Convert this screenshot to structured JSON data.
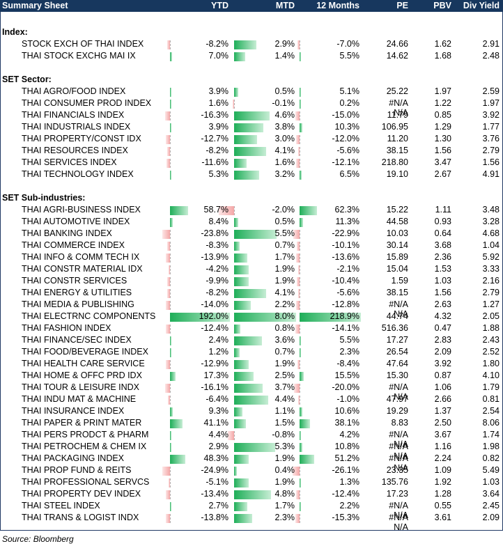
{
  "header": {
    "title": "Summary Sheet",
    "columns": [
      "YTD",
      "MTD",
      "12 Months",
      "PE",
      "PBV",
      "Div Yield"
    ]
  },
  "sections": [
    {
      "label": "Index:",
      "rows": [
        {
          "name": "STOCK EXCH OF THAI INDEX",
          "ytd": "-8.2%",
          "mtd": "2.9%",
          "m12": "-7.0%",
          "pe": "24.66",
          "pbv": "1.62",
          "dy": "2.91",
          "ytd_v": -8.2,
          "mtd_v": 2.9,
          "m12_v": -7.0
        },
        {
          "name": "THAI STOCK EXCHG MAI IX",
          "ytd": "7.0%",
          "mtd": "1.4%",
          "m12": "5.5%",
          "pe": "14.62",
          "pbv": "1.68",
          "dy": "2.48",
          "ytd_v": 7.0,
          "mtd_v": 1.4,
          "m12_v": 5.5
        }
      ]
    },
    {
      "label": "SET Sector:",
      "rows": [
        {
          "name": "THAI AGRO/FOOD INDEX",
          "ytd": "3.9%",
          "mtd": "0.5%",
          "m12": "5.1%",
          "pe": "25.22",
          "pbv": "1.97",
          "dy": "2.59",
          "ytd_v": 3.9,
          "mtd_v": 0.5,
          "m12_v": 5.1
        },
        {
          "name": "THAI CONSUMER PROD INDEX",
          "ytd": "1.6%",
          "mtd": "-0.1%",
          "m12": "0.2%",
          "pe": "#N/A N/A",
          "pbv": "1.22",
          "dy": "1.97",
          "ytd_v": 1.6,
          "mtd_v": -0.1,
          "m12_v": 0.2
        },
        {
          "name": "THAI FINANCIALS INDEX",
          "ytd": "-16.3%",
          "mtd": "4.6%",
          "m12": "-15.0%",
          "pe": "11.79",
          "pbv": "0.85",
          "dy": "3.92",
          "ytd_v": -16.3,
          "mtd_v": 4.6,
          "m12_v": -15.0
        },
        {
          "name": "THAI INDUSTRIALS INDEX",
          "ytd": "3.9%",
          "mtd": "3.8%",
          "m12": "10.3%",
          "pe": "106.95",
          "pbv": "1.29",
          "dy": "1.77",
          "ytd_v": 3.9,
          "mtd_v": 3.8,
          "m12_v": 10.3
        },
        {
          "name": "THAI PROPERTY/CONST IDX",
          "ytd": "-12.7%",
          "mtd": "3.0%",
          "m12": "-12.0%",
          "pe": "11.20",
          "pbv": "1.30",
          "dy": "3.76",
          "ytd_v": -12.7,
          "mtd_v": 3.0,
          "m12_v": -12.0
        },
        {
          "name": "THAI RESOURCES INDEX",
          "ytd": "-8.2%",
          "mtd": "4.1%",
          "m12": "-5.6%",
          "pe": "38.15",
          "pbv": "1.56",
          "dy": "2.79",
          "ytd_v": -8.2,
          "mtd_v": 4.1,
          "m12_v": -5.6
        },
        {
          "name": "THAI SERVICES INDEX",
          "ytd": "-11.6%",
          "mtd": "1.6%",
          "m12": "-12.1%",
          "pe": "218.80",
          "pbv": "3.47",
          "dy": "1.56",
          "ytd_v": -11.6,
          "mtd_v": 1.6,
          "m12_v": -12.1
        },
        {
          "name": "THAI TECHNOLOGY INDEX",
          "ytd": "5.3%",
          "mtd": "3.2%",
          "m12": "6.5%",
          "pe": "19.10",
          "pbv": "2.67",
          "dy": "4.91",
          "ytd_v": 5.3,
          "mtd_v": 3.2,
          "m12_v": 6.5
        }
      ]
    },
    {
      "label": "SET Sub-industries:",
      "rows": [
        {
          "name": "THAI AGRI-BUSINESS INDEX",
          "ytd": "58.7%",
          "mtd": "-2.0%",
          "m12": "62.3%",
          "pe": "15.22",
          "pbv": "1.11",
          "dy": "3.48",
          "ytd_v": 58.7,
          "mtd_v": -2.0,
          "m12_v": 62.3
        },
        {
          "name": "THAI AUTOMOTIVE INDEX",
          "ytd": "8.4%",
          "mtd": "0.5%",
          "m12": "11.3%",
          "pe": "44.58",
          "pbv": "0.93",
          "dy": "3.28",
          "ytd_v": 8.4,
          "mtd_v": 0.5,
          "m12_v": 11.3
        },
        {
          "name": "THAI BANKING INDEX",
          "ytd": "-23.8%",
          "mtd": "5.5%",
          "m12": "-22.9%",
          "pe": "10.03",
          "pbv": "0.64",
          "dy": "4.68",
          "ytd_v": -23.8,
          "mtd_v": 5.5,
          "m12_v": -22.9
        },
        {
          "name": "THAI COMMERCE INDEX",
          "ytd": "-8.3%",
          "mtd": "0.7%",
          "m12": "-10.1%",
          "pe": "30.14",
          "pbv": "3.68",
          "dy": "1.04",
          "ytd_v": -8.3,
          "mtd_v": 0.7,
          "m12_v": -10.1
        },
        {
          "name": "THAI INFO & COMM TECH IX",
          "ytd": "-13.9%",
          "mtd": "1.7%",
          "m12": "-13.6%",
          "pe": "15.89",
          "pbv": "2.36",
          "dy": "5.92",
          "ytd_v": -13.9,
          "mtd_v": 1.7,
          "m12_v": -13.6
        },
        {
          "name": "THAI CONSTR MATERIAL IDX",
          "ytd": "-4.2%",
          "mtd": "1.9%",
          "m12": "-2.1%",
          "pe": "15.04",
          "pbv": "1.53",
          "dy": "3.33",
          "ytd_v": -4.2,
          "mtd_v": 1.9,
          "m12_v": -2.1
        },
        {
          "name": "THAI CONSTR SERVICES",
          "ytd": "-9.9%",
          "mtd": "1.9%",
          "m12": "-10.4%",
          "pe": "1.59",
          "pbv": "1.03",
          "dy": "2.16",
          "ytd_v": -9.9,
          "mtd_v": 1.9,
          "m12_v": -10.4
        },
        {
          "name": "THAI ENERGY & UTILITIES",
          "ytd": "-8.2%",
          "mtd": "4.1%",
          "m12": "-5.6%",
          "pe": "38.15",
          "pbv": "1.56",
          "dy": "2.79",
          "ytd_v": -8.2,
          "mtd_v": 4.1,
          "m12_v": -5.6
        },
        {
          "name": "THAI MEDIA & PUBLISHING",
          "ytd": "-14.0%",
          "mtd": "2.2%",
          "m12": "-12.8%",
          "pe": "#N/A N/A",
          "pbv": "2.63",
          "dy": "1.27",
          "ytd_v": -14.0,
          "mtd_v": 2.2,
          "m12_v": -12.8
        },
        {
          "name": "THAI ELECTRNC COMPONENTS",
          "ytd": "192.0%",
          "mtd": "8.0%",
          "m12": "218.9%",
          "pe": "44.74",
          "pbv": "4.32",
          "dy": "2.05",
          "ytd_v": 192.0,
          "mtd_v": 8.0,
          "m12_v": 218.9
        },
        {
          "name": "THAI FASHION INDEX",
          "ytd": "-12.4%",
          "mtd": "0.8%",
          "m12": "-14.1%",
          "pe": "516.36",
          "pbv": "0.47",
          "dy": "1.88",
          "ytd_v": -12.4,
          "mtd_v": 0.8,
          "m12_v": -14.1
        },
        {
          "name": "THAI FINANCE/SEC INDEX",
          "ytd": "2.4%",
          "mtd": "3.6%",
          "m12": "5.5%",
          "pe": "17.27",
          "pbv": "2.83",
          "dy": "2.43",
          "ytd_v": 2.4,
          "mtd_v": 3.6,
          "m12_v": 5.5
        },
        {
          "name": "THAI FOOD/BEVERAGE INDEX",
          "ytd": "1.2%",
          "mtd": "0.7%",
          "m12": "2.3%",
          "pe": "26.54",
          "pbv": "2.09",
          "dy": "2.52",
          "ytd_v": 1.2,
          "mtd_v": 0.7,
          "m12_v": 2.3
        },
        {
          "name": "THAI HEALTH CARE SERVICE",
          "ytd": "-12.9%",
          "mtd": "1.9%",
          "m12": "-8.4%",
          "pe": "47.64",
          "pbv": "3.92",
          "dy": "1.80",
          "ytd_v": -12.9,
          "mtd_v": 1.9,
          "m12_v": -8.4
        },
        {
          "name": "THAI HOME & OFFC PRD IDX",
          "ytd": "17.3%",
          "mtd": "2.5%",
          "m12": "15.5%",
          "pe": "15.30",
          "pbv": "0.87",
          "dy": "4.10",
          "ytd_v": 17.3,
          "mtd_v": 2.5,
          "m12_v": 15.5
        },
        {
          "name": "THAI TOUR & LEISURE INDX",
          "ytd": "-16.1%",
          "mtd": "3.7%",
          "m12": "-20.0%",
          "pe": "#N/A N/A",
          "pbv": "1.06",
          "dy": "1.79",
          "ytd_v": -16.1,
          "mtd_v": 3.7,
          "m12_v": -20.0
        },
        {
          "name": "THAI INDU MAT & MACHINE",
          "ytd": "-6.4%",
          "mtd": "4.4%",
          "m12": "-1.0%",
          "pe": "47.97",
          "pbv": "2.66",
          "dy": "0.81",
          "ytd_v": -6.4,
          "mtd_v": 4.4,
          "m12_v": -1.0
        },
        {
          "name": "THAI INSURANCE INDEX",
          "ytd": "9.3%",
          "mtd": "1.1%",
          "m12": "10.6%",
          "pe": "19.29",
          "pbv": "1.37",
          "dy": "2.54",
          "ytd_v": 9.3,
          "mtd_v": 1.1,
          "m12_v": 10.6
        },
        {
          "name": "THAI PAPER & PRINT MATER",
          "ytd": "41.1%",
          "mtd": "1.5%",
          "m12": "38.1%",
          "pe": "8.83",
          "pbv": "2.50",
          "dy": "8.06",
          "ytd_v": 41.1,
          "mtd_v": 1.5,
          "m12_v": 38.1
        },
        {
          "name": "THAI PERS PRODCT & PHARM",
          "ytd": "4.4%",
          "mtd": "-0.8%",
          "m12": "4.2%",
          "pe": "#N/A N/A",
          "pbv": "3.67",
          "dy": "1.74",
          "ytd_v": 4.4,
          "mtd_v": -0.8,
          "m12_v": 4.2
        },
        {
          "name": "THAI PETROCHEM & CHEM IX",
          "ytd": "2.9%",
          "mtd": "5.3%",
          "m12": "10.8%",
          "pe": "#N/A N/A",
          "pbv": "1.16",
          "dy": "1.98",
          "ytd_v": 2.9,
          "mtd_v": 5.3,
          "m12_v": 10.8
        },
        {
          "name": "THAI PACKAGING INDEX",
          "ytd": "48.3%",
          "mtd": "1.9%",
          "m12": "51.2%",
          "pe": "#N/A N/A",
          "pbv": "2.24",
          "dy": "0.82",
          "ytd_v": 48.3,
          "mtd_v": 1.9,
          "m12_v": 51.2
        },
        {
          "name": "THAI PROP FUND & REITS",
          "ytd": "-24.9%",
          "mtd": "0.4%",
          "m12": "-26.1%",
          "pe": "23.35",
          "pbv": "1.09",
          "dy": "5.49",
          "ytd_v": -24.9,
          "mtd_v": 0.4,
          "m12_v": -26.1
        },
        {
          "name": "THAI PROFESSIONAL SERVCS",
          "ytd": "-5.1%",
          "mtd": "1.9%",
          "m12": "1.3%",
          "pe": "135.76",
          "pbv": "1.92",
          "dy": "1.03",
          "ytd_v": -5.1,
          "mtd_v": 1.9,
          "m12_v": 1.3
        },
        {
          "name": "THAI PROPERTY DEV INDEX",
          "ytd": "-13.4%",
          "mtd": "4.8%",
          "m12": "-12.4%",
          "pe": "17.23",
          "pbv": "1.28",
          "dy": "3.64",
          "ytd_v": -13.4,
          "mtd_v": 4.8,
          "m12_v": -12.4
        },
        {
          "name": "THAI STEEL INDEX",
          "ytd": "2.7%",
          "mtd": "1.7%",
          "m12": "2.2%",
          "pe": "#N/A N/A",
          "pbv": "0.55",
          "dy": "2.45",
          "ytd_v": 2.7,
          "mtd_v": 1.7,
          "m12_v": 2.2
        },
        {
          "name": "THAI TRANS & LOGIST INDX",
          "ytd": "-13.8%",
          "mtd": "2.3%",
          "m12": "-15.3%",
          "pe": "#N/A N/A",
          "pbv": "3.61",
          "dy": "2.09",
          "ytd_v": -13.8,
          "mtd_v": 2.3,
          "m12_v": -15.3
        }
      ]
    }
  ],
  "source": "Source: Bloomberg",
  "colors": {
    "header_bg": "#17375e",
    "positive_bar": "#1eae58",
    "negative_bar": "#f4a7a7"
  }
}
